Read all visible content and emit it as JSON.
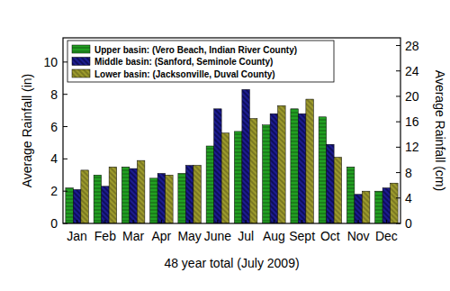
{
  "chart_data": {
    "type": "bar",
    "xlabel": "48 year total (July 2009)",
    "ylabel": "Average Rainfall (in)",
    "y2label": "Average Rainfall (cm)",
    "categories": [
      "Jan",
      "Feb",
      "Mar",
      "Apr",
      "May",
      "June",
      "Jul",
      "Aug",
      "Sept",
      "Oct",
      "Nov",
      "Dec"
    ],
    "series": [
      {
        "name": "Upper basin: (Vero Beach, Indian River County)",
        "color": "#22a022",
        "values": [
          2.2,
          3.0,
          3.5,
          2.8,
          3.1,
          4.8,
          5.7,
          6.1,
          7.1,
          6.6,
          3.5,
          2.0
        ]
      },
      {
        "name": "Middle basin: (Sanford, Seminole County)",
        "color": "#1c1c90",
        "values": [
          2.1,
          2.3,
          3.4,
          3.1,
          3.6,
          7.1,
          8.3,
          6.8,
          6.8,
          4.9,
          1.8,
          2.2
        ]
      },
      {
        "name": "Lower basin: (Jacksonville, Duval County)",
        "color": "#9c9a2c",
        "values": [
          3.3,
          3.5,
          3.9,
          3.0,
          3.6,
          5.6,
          6.5,
          7.3,
          7.7,
          4.1,
          2.0,
          2.5
        ]
      }
    ],
    "ylim": [
      0,
      11.5
    ],
    "yticks": [
      0,
      2,
      4,
      6,
      8,
      10
    ],
    "y2lim": [
      0,
      29.21
    ],
    "y2ticks": [
      0,
      4,
      8,
      12,
      16,
      20,
      24,
      28
    ],
    "legend": "top-left",
    "grid": false
  }
}
